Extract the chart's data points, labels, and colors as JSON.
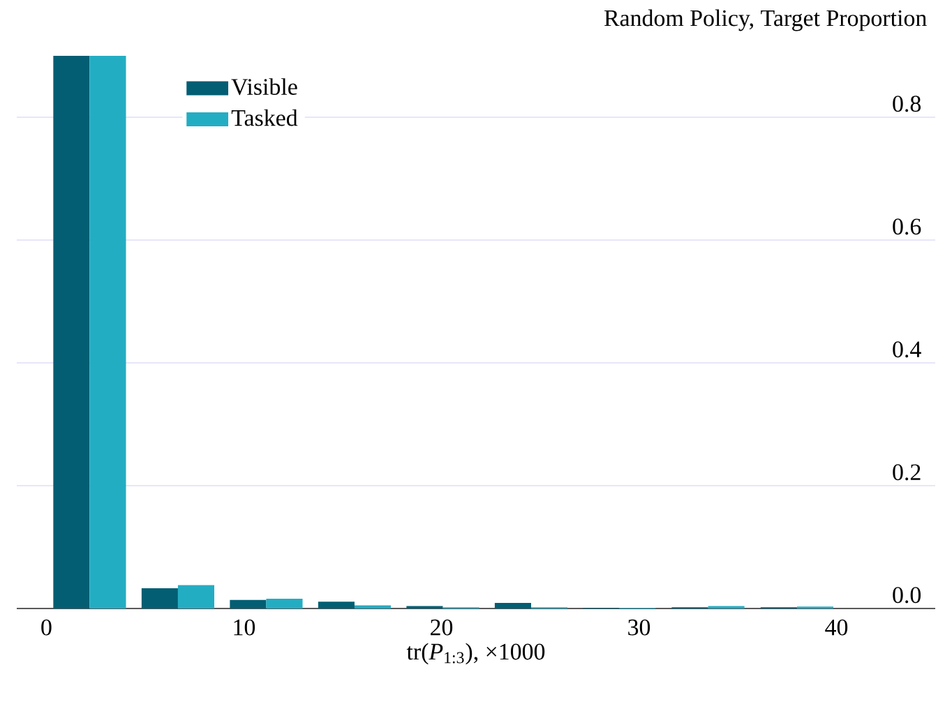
{
  "chart_data": {
    "type": "bar",
    "title": "Random Policy, Target Proportion",
    "xlabel": "tr(*P*$_{1:3}$), ×1000",
    "x": [
      2.19,
      6.66,
      11.13,
      15.6,
      20.07,
      24.54,
      29.0,
      33.5,
      38.0
    ],
    "series": [
      {
        "name": "Visible",
        "color": "#035e73",
        "values": [
          0.9,
          0.033,
          0.014,
          0.011,
          0.004,
          0.009,
          0.001,
          0.002,
          0.002
        ]
      },
      {
        "name": "Tasked",
        "color": "#23adc3",
        "values": [
          0.9,
          0.038,
          0.016,
          0.005,
          0.002,
          0.002,
          0.001,
          0.004,
          0.003
        ]
      }
    ],
    "xlim": [
      -1.5,
      45
    ],
    "xticks": [
      0,
      10,
      20,
      30,
      40
    ],
    "ylim": [
      0,
      0.9
    ],
    "yticks": [
      {
        "value": 0,
        "label": "0.0"
      },
      {
        "value": 0.2,
        "label": "0.2"
      },
      {
        "value": 0.4,
        "label": "0.4"
      },
      {
        "value": 0.6,
        "label": "0.6"
      },
      {
        "value": 0.8,
        "label": "0.8"
      }
    ],
    "grid": "y",
    "legend": "top left"
  }
}
